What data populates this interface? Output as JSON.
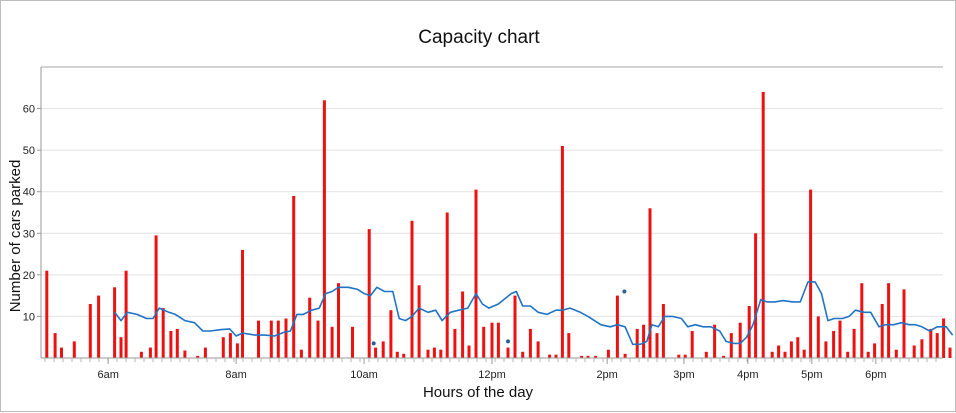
{
  "chart_data": {
    "type": "bar",
    "title": "Capacity chart",
    "xlabel": "Hours of the day",
    "ylabel": "Number of cars parked",
    "ylim": [
      0,
      70
    ],
    "yticks": [
      10,
      20,
      30,
      40,
      50,
      60
    ],
    "xlim": [
      4.95,
      19.05
    ],
    "xtick_labels": [
      {
        "label": "6am",
        "x": 6.0
      },
      {
        "label": "8am",
        "x": 8.0
      },
      {
        "label": "10am",
        "x": 10.0
      },
      {
        "label": "12pm",
        "x": 12.0
      },
      {
        "label": "2pm",
        "x": 13.8
      },
      {
        "label": "3pm",
        "x": 15.0
      },
      {
        "label": "4pm",
        "x": 16.0
      },
      {
        "label": "5pm",
        "x": 17.0
      },
      {
        "label": "6pm",
        "x": 18.0
      }
    ],
    "grid": true,
    "colors": {
      "bars": "#ee1111",
      "line": "#1f74c4",
      "grid": "#e2e2e2",
      "axis": "#9a9a9a"
    },
    "series": [
      {
        "kind": "bar",
        "points": [
          [
            5.04,
            21
          ],
          [
            5.17,
            6
          ],
          [
            5.27,
            2.5
          ],
          [
            5.47,
            4
          ],
          [
            5.72,
            13
          ],
          [
            5.85,
            15
          ],
          [
            6.1,
            17
          ],
          [
            6.2,
            5
          ],
          [
            6.28,
            21
          ],
          [
            6.52,
            1.5
          ],
          [
            6.66,
            2.5
          ],
          [
            6.75,
            29.5
          ],
          [
            6.86,
            12
          ],
          [
            6.98,
            6.5
          ],
          [
            7.08,
            7
          ],
          [
            7.2,
            1.8
          ],
          [
            7.4,
            0.5
          ],
          [
            7.52,
            2.5
          ],
          [
            7.8,
            5
          ],
          [
            7.91,
            6
          ],
          [
            8.02,
            3.5
          ],
          [
            8.1,
            26
          ],
          [
            8.35,
            9
          ],
          [
            8.55,
            9
          ],
          [
            8.66,
            9
          ],
          [
            8.78,
            9.5
          ],
          [
            8.9,
            39
          ],
          [
            9.02,
            2
          ],
          [
            9.15,
            14.5
          ],
          [
            9.28,
            9
          ],
          [
            9.38,
            62
          ],
          [
            9.5,
            7.5
          ],
          [
            9.6,
            18
          ],
          [
            9.82,
            7.5
          ],
          [
            10.08,
            31
          ],
          [
            10.18,
            2.5
          ],
          [
            10.3,
            4
          ],
          [
            10.42,
            11.5
          ],
          [
            10.52,
            1.5
          ],
          [
            10.62,
            1
          ],
          [
            10.75,
            33
          ],
          [
            10.86,
            17.5
          ],
          [
            11,
            2
          ],
          [
            11.1,
            2.5
          ],
          [
            11.2,
            2
          ],
          [
            11.3,
            35
          ],
          [
            11.42,
            7
          ],
          [
            11.54,
            16
          ],
          [
            11.64,
            3
          ],
          [
            11.75,
            40.5
          ],
          [
            11.87,
            7.5
          ],
          [
            12,
            8.5
          ],
          [
            12.1,
            8.5
          ],
          [
            12.25,
            2.5
          ],
          [
            12.36,
            15
          ],
          [
            12.48,
            1.5
          ],
          [
            12.6,
            7
          ],
          [
            12.72,
            4
          ],
          [
            12.9,
            0.8
          ],
          [
            13,
            0.8
          ],
          [
            13.1,
            51
          ],
          [
            13.2,
            6
          ],
          [
            13.4,
            0.5
          ],
          [
            13.5,
            0.5
          ],
          [
            13.62,
            0.5
          ],
          [
            13.82,
            2
          ],
          [
            13.96,
            15
          ],
          [
            14.08,
            1
          ],
          [
            14.27,
            7
          ],
          [
            14.37,
            8
          ],
          [
            14.47,
            36
          ],
          [
            14.58,
            6
          ],
          [
            14.68,
            13
          ],
          [
            14.92,
            0.8
          ],
          [
            15.02,
            0.8
          ],
          [
            15.13,
            6.5
          ],
          [
            15.35,
            1.5
          ],
          [
            15.48,
            8
          ],
          [
            15.62,
            0.5
          ],
          [
            15.74,
            6
          ],
          [
            15.88,
            8.5
          ],
          [
            16.02,
            12.5
          ],
          [
            16.12,
            30
          ],
          [
            16.24,
            64
          ],
          [
            16.38,
            1.5
          ],
          [
            16.48,
            3
          ],
          [
            16.58,
            1.5
          ],
          [
            16.68,
            4
          ],
          [
            16.78,
            5
          ],
          [
            16.88,
            2
          ],
          [
            16.98,
            40.5
          ],
          [
            17.1,
            10
          ],
          [
            17.22,
            4
          ],
          [
            17.34,
            6.5
          ],
          [
            17.44,
            9
          ],
          [
            17.56,
            1.5
          ],
          [
            17.66,
            7
          ],
          [
            17.78,
            18
          ],
          [
            17.88,
            1.5
          ],
          [
            17.98,
            3.5
          ],
          [
            18.1,
            13
          ],
          [
            18.2,
            18
          ],
          [
            18.32,
            2
          ],
          [
            18.44,
            16.5
          ],
          [
            18.6,
            3
          ],
          [
            18.72,
            4.5
          ],
          [
            18.86,
            7
          ],
          [
            18.96,
            6
          ],
          [
            19.06,
            9.5
          ],
          [
            19.16,
            2.5
          ]
        ]
      },
      {
        "kind": "line",
        "points": [
          [
            6.1,
            11
          ],
          [
            6.2,
            9
          ],
          [
            6.3,
            11
          ],
          [
            6.45,
            10.5
          ],
          [
            6.6,
            9.5
          ],
          [
            6.7,
            9.5
          ],
          [
            6.8,
            12
          ],
          [
            6.95,
            11
          ],
          [
            7.05,
            10.5
          ],
          [
            7.2,
            9
          ],
          [
            7.35,
            8.5
          ],
          [
            7.48,
            6.5
          ],
          [
            7.6,
            6.5
          ],
          [
            7.75,
            6.8
          ],
          [
            7.9,
            7
          ],
          [
            8.0,
            5.3
          ],
          [
            8.1,
            6
          ],
          [
            8.3,
            5.5
          ],
          [
            8.45,
            5.5
          ],
          [
            8.6,
            5.3
          ],
          [
            8.75,
            6.2
          ],
          [
            8.85,
            6.5
          ],
          [
            8.95,
            10.5
          ],
          [
            9.05,
            10.5
          ],
          [
            9.18,
            11.5
          ],
          [
            9.3,
            12
          ],
          [
            9.4,
            15.5
          ],
          [
            9.5,
            16
          ],
          [
            9.6,
            17
          ],
          [
            9.75,
            17
          ],
          [
            9.9,
            16.5
          ],
          [
            10.0,
            15.5
          ],
          [
            10.1,
            15
          ],
          [
            10.2,
            17
          ],
          [
            10.32,
            16
          ],
          [
            10.45,
            16
          ],
          [
            10.55,
            9.5
          ],
          [
            10.65,
            9
          ],
          [
            10.75,
            10
          ],
          [
            10.86,
            12
          ],
          [
            11.0,
            11
          ],
          [
            11.12,
            11.5
          ],
          [
            11.22,
            9
          ],
          [
            11.35,
            11
          ],
          [
            11.48,
            11.5
          ],
          [
            11.62,
            12
          ],
          [
            11.75,
            15.5
          ],
          [
            11.85,
            13
          ],
          [
            11.95,
            12
          ],
          [
            12.1,
            13
          ],
          [
            12.3,
            15.5
          ],
          [
            12.38,
            16
          ],
          [
            12.48,
            12.5
          ],
          [
            12.6,
            12.5
          ],
          [
            12.72,
            11
          ],
          [
            12.86,
            10.5
          ],
          [
            13.0,
            11.5
          ],
          [
            13.1,
            11.5
          ],
          [
            13.22,
            12
          ],
          [
            13.38,
            11
          ],
          [
            13.5,
            10
          ],
          [
            13.7,
            8
          ],
          [
            13.85,
            7.5
          ],
          [
            13.96,
            8
          ],
          [
            14.08,
            7.5
          ],
          [
            14.2,
            3.3
          ],
          [
            14.32,
            3.3
          ],
          [
            14.42,
            4
          ],
          [
            14.5,
            8
          ],
          [
            14.6,
            7.5
          ],
          [
            14.7,
            10
          ],
          [
            14.82,
            10
          ],
          [
            14.96,
            9.5
          ],
          [
            15.06,
            7.5
          ],
          [
            15.18,
            8
          ],
          [
            15.3,
            7.5
          ],
          [
            15.42,
            7.5
          ],
          [
            15.56,
            6.5
          ],
          [
            15.66,
            4
          ],
          [
            15.78,
            3.5
          ],
          [
            15.88,
            3.5
          ],
          [
            15.98,
            5
          ],
          [
            16.08,
            8
          ],
          [
            16.2,
            14
          ],
          [
            16.3,
            13.5
          ],
          [
            16.42,
            13.5
          ],
          [
            16.55,
            13.8
          ],
          [
            16.7,
            13.5
          ],
          [
            16.82,
            13.5
          ],
          [
            16.94,
            18.3
          ],
          [
            17.05,
            18.3
          ],
          [
            17.15,
            15.5
          ],
          [
            17.25,
            9
          ],
          [
            17.35,
            9.5
          ],
          [
            17.48,
            9.5
          ],
          [
            17.58,
            10
          ],
          [
            17.68,
            11.5
          ],
          [
            17.82,
            11
          ],
          [
            17.92,
            11
          ],
          [
            18.05,
            7.5
          ],
          [
            18.15,
            8
          ],
          [
            18.28,
            8
          ],
          [
            18.4,
            8.5
          ],
          [
            18.52,
            8
          ],
          [
            18.62,
            8
          ],
          [
            18.72,
            7.5
          ],
          [
            18.84,
            6.5
          ],
          [
            18.96,
            7.5
          ],
          [
            19.1,
            7.5
          ],
          [
            19.2,
            5.5
          ]
        ]
      },
      {
        "kind": "scatter",
        "points": [
          [
            10.15,
            3.5
          ],
          [
            12.25,
            4
          ],
          [
            14.07,
            16
          ]
        ]
      }
    ]
  }
}
